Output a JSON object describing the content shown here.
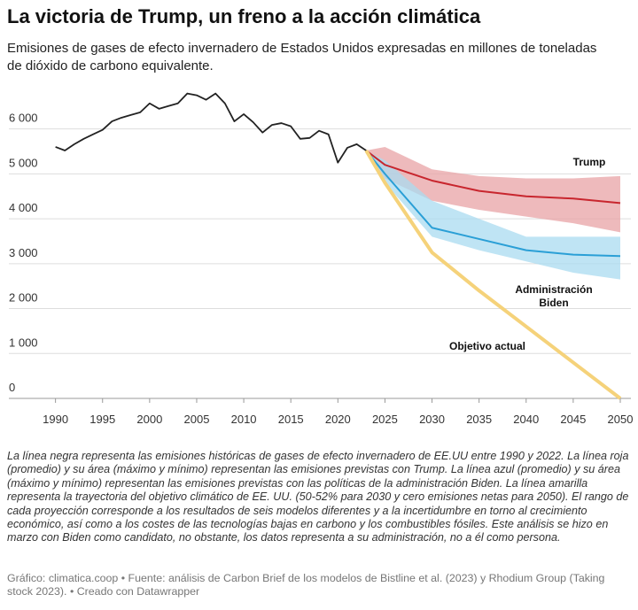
{
  "chart_data": {
    "type": "line",
    "title": "La victoria de Trump, un freno a la acción climática",
    "subtitle": "Emisiones de gases de efecto invernadero de Estados Unidos expresadas en millones de toneladas de dióxido de carbono equivalente.",
    "xlim": [
      1989,
      2050
    ],
    "xticks": [
      1990,
      1995,
      2000,
      2005,
      2010,
      2015,
      2020,
      2025,
      2030,
      2035,
      2040,
      2045,
      2050
    ],
    "ylim": [
      0,
      6900
    ],
    "yticks": [
      0,
      {
        "value": 1000,
        "label": "1 000"
      },
      {
        "value": 2000,
        "label": "2 000"
      },
      {
        "value": 3000,
        "label": "3 000"
      },
      {
        "value": 4000,
        "label": "4 000"
      },
      {
        "value": 5000,
        "label": "5 000"
      },
      {
        "value": 6000,
        "label": "6 000"
      }
    ],
    "grid": true,
    "series": [
      {
        "color": "#222222",
        "x": [
          1990,
          1991,
          1992,
          1993,
          1994,
          1995,
          1996,
          1997,
          1998,
          1999,
          2000,
          2001,
          2002,
          2003,
          2004,
          2005,
          2006,
          2007,
          2008,
          2009,
          2010,
          2011,
          2012,
          2013,
          2014,
          2015,
          2016,
          2017,
          2018,
          2019,
          2020,
          2021,
          2022,
          2023
        ],
        "values": [
          5600,
          5520,
          5660,
          5780,
          5880,
          5980,
          6170,
          6250,
          6310,
          6370,
          6570,
          6450,
          6510,
          6570,
          6790,
          6750,
          6650,
          6790,
          6570,
          6170,
          6330,
          6150,
          5920,
          6090,
          6130,
          6060,
          5780,
          5800,
          5960,
          5880,
          5250,
          5580,
          5660,
          5520
        ]
      },
      {
        "name": "Trump",
        "color": "#c8262e",
        "band_color": "#e8a3a5",
        "x": [
          2023,
          2025,
          2030,
          2035,
          2040,
          2045,
          2050
        ],
        "values": [
          5520,
          5200,
          4850,
          4620,
          4500,
          4450,
          4350
        ],
        "min": [
          5520,
          4900,
          4400,
          4200,
          4050,
          3900,
          3700
        ],
        "max": [
          5520,
          5600,
          5100,
          4950,
          4900,
          4900,
          4950
        ]
      },
      {
        "name": "Administración Biden",
        "color": "#2a9fd6",
        "band_color": "#a9dbf0",
        "x": [
          2023,
          2025,
          2030,
          2035,
          2040,
          2045,
          2050
        ],
        "values": [
          5520,
          5000,
          3800,
          3550,
          3300,
          3200,
          3170
        ],
        "min": [
          5520,
          4800,
          3600,
          3300,
          3050,
          2800,
          2650
        ],
        "max": [
          5520,
          5300,
          4400,
          4000,
          3600,
          3600,
          3600
        ]
      },
      {
        "name": "Objetivo actual",
        "color": "#f5d27a",
        "x": [
          2023,
          2025,
          2030,
          2035,
          2040,
          2045,
          2050
        ],
        "values": [
          5520,
          4800,
          3250,
          2400,
          1600,
          800,
          0
        ]
      }
    ],
    "notes": "La línea negra representa las emisiones históricas de gases de efecto invernadero de EE.UU entre 1990 y 2022. La línea roja (promedio) y su área (máximo y mínimo) representan las emisiones previstas con Trump. La línea azul (promedio) y su área (máximo y mínimo) representan las emisiones previstas con las políticas de la administración Biden. La línea amarilla representa la trayectoria del objetivo climático de EE. UU. (50-52% para 2030 y cero emisiones netas para 2050). El rango de cada proyección corresponde a los resultados de seis modelos diferentes y a la incertidumbre en torno al crecimiento económico, así como a los costes de las tecnologías bajas en carbono y los combustibles fósiles. Este análisis se hizo en marzo con Biden como candidato, no obstante, los datos representa a su administración, no a él como persona.",
    "source": "Gráfico: climatica.coop • Fuente: análisis de Carbon Brief de los modelos de Bistline et al. (2023) y Rhodium Group (Taking stock 2023). • Creado con Datawrapper"
  }
}
